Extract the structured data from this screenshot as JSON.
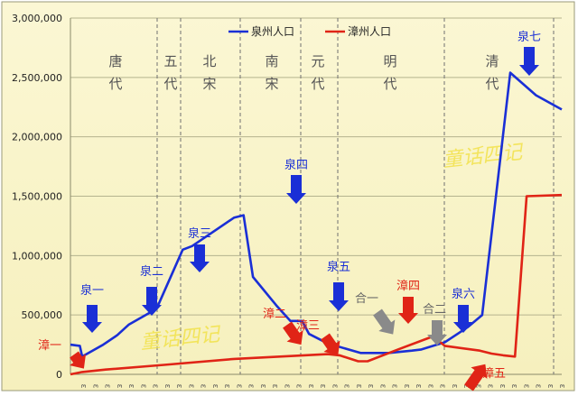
{
  "chart_data": {
    "type": "line",
    "title": "",
    "xlabel": "",
    "ylabel": "",
    "ylim": [
      0,
      3000000
    ],
    "yticks": [
      "3,000,000",
      "2,500,000",
      "2,000,000",
      "1,500,000",
      "1,000,000",
      "500,000",
      "0"
    ],
    "legend_position": "top",
    "series": [
      {
        "name": "泉州人口",
        "color": "#1a2fd6",
        "points": [
          [
            0,
            250000
          ],
          [
            4,
            240000
          ],
          [
            5,
            150000
          ],
          [
            14,
            250000
          ],
          [
            20,
            330000
          ],
          [
            25,
            420000
          ],
          [
            34,
            520000
          ],
          [
            37,
            560000
          ],
          [
            48,
            1050000
          ],
          [
            52,
            1080000
          ],
          [
            70,
            1320000
          ],
          [
            74,
            1340000
          ],
          [
            78,
            820000
          ],
          [
            88,
            580000
          ],
          [
            94,
            450000
          ],
          [
            99,
            450000
          ],
          [
            102,
            340000
          ],
          [
            110,
            260000
          ],
          [
            124,
            180000
          ],
          [
            136,
            180000
          ],
          [
            146,
            200000
          ],
          [
            150,
            210000
          ],
          [
            160,
            270000
          ],
          [
            170,
            400000
          ],
          [
            176,
            500000
          ],
          [
            188,
            2540000
          ],
          [
            199,
            2350000
          ],
          [
            210,
            2230000
          ]
        ]
      },
      {
        "name": "漳州人口",
        "color": "#e02416",
        "points": [
          [
            0,
            0
          ],
          [
            5,
            20000
          ],
          [
            15,
            40000
          ],
          [
            40,
            80000
          ],
          [
            70,
            130000
          ],
          [
            110,
            170000
          ],
          [
            115,
            160000
          ],
          [
            123,
            110000
          ],
          [
            127,
            110000
          ],
          [
            140,
            210000
          ],
          [
            155,
            320000
          ],
          [
            160,
            240000
          ],
          [
            175,
            200000
          ],
          [
            180,
            175000
          ],
          [
            185,
            160000
          ],
          [
            190,
            150000
          ],
          [
            195,
            1500000
          ],
          [
            210,
            1510000
          ]
        ]
      }
    ],
    "dynasties": [
      "唐代",
      "五代",
      "北宋",
      "南宋",
      "元代",
      "明代",
      "清代"
    ],
    "markers": [
      {
        "label": "泉一",
        "color": "#1a2fd6"
      },
      {
        "label": "泉二",
        "color": "#1a2fd6"
      },
      {
        "label": "泉三",
        "color": "#1a2fd6"
      },
      {
        "label": "泉四",
        "color": "#1a2fd6"
      },
      {
        "label": "泉五",
        "color": "#1a2fd6"
      },
      {
        "label": "泉六",
        "color": "#1a2fd6"
      },
      {
        "label": "泉七",
        "color": "#1a2fd6"
      },
      {
        "label": "漳一",
        "color": "#e02416"
      },
      {
        "label": "漳二",
        "color": "#e02416"
      },
      {
        "label": "漳三",
        "color": "#e02416"
      },
      {
        "label": "漳四",
        "color": "#e02416"
      },
      {
        "label": "漳五",
        "color": "#e02416"
      },
      {
        "label": "合一",
        "color": "#8a8a8a"
      },
      {
        "label": "合二",
        "color": "#8a8a8a"
      }
    ],
    "watermark": "童话四记",
    "x_tick_glyph": "ε",
    "x_tick_count": 41
  }
}
